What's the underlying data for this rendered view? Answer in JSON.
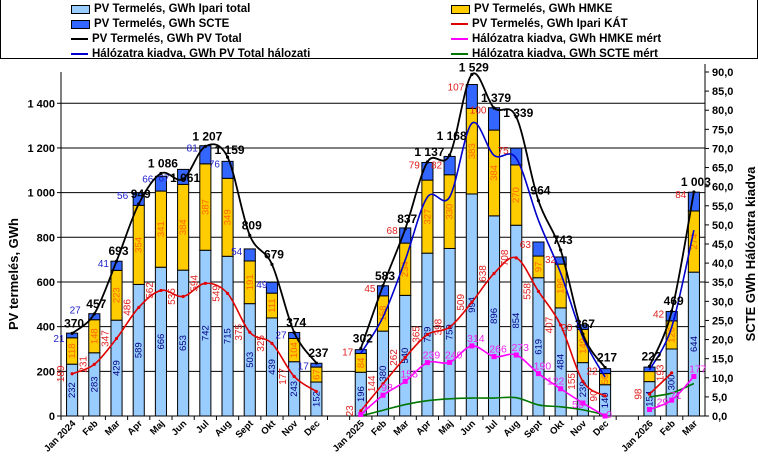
{
  "chart_data": {
    "type": "bar",
    "stacked": true,
    "categories": [
      "Jan 2024",
      "Feb",
      "Mar",
      "Apr",
      "Maj",
      "Jun",
      "Jul",
      "Aug",
      "Sept",
      "Okt",
      "Nov",
      "Dec",
      "",
      "Jan 2025",
      "Feb",
      "Mar",
      "Apr",
      "Maj",
      "Jun",
      "Jul",
      "Aug",
      "Sept",
      "Okt",
      "Nov",
      "Dec",
      "",
      "Jan 2026",
      "Feb",
      "Mar"
    ],
    "ylabel": "PV termelés, GWh",
    "y2label": "SCTE GWh Hálózatra kiadva",
    "ylim": [
      0,
      1540
    ],
    "y2lim": [
      0,
      90
    ],
    "yticks": [
      "0",
      "200",
      "400",
      "600",
      "800",
      "1 000",
      "1 200",
      "1 400"
    ],
    "y2ticks": [
      "0,0",
      "5,0",
      "10,0",
      "15,0",
      "20,0",
      "25,0",
      "30,0",
      "35,0",
      "40,0",
      "45,0",
      "50,0",
      "55,0",
      "60,0",
      "65,0",
      "70,0",
      "75,0",
      "80,0",
      "85,0",
      "90,0"
    ],
    "grid": "horizontal",
    "legend_placement": "top",
    "series": [
      {
        "name": "PV Termelés, GWh Ipari total",
        "kind": "bar",
        "color": "#99ccff",
        "label_color": "#000080",
        "values": [
          232,
          283,
          429,
          589,
          666,
          653,
          742,
          715,
          503,
          439,
          243,
          152,
          null,
          196,
          380,
          540,
          729,
          750,
          994,
          896,
          854,
          619,
          484,
          239,
          140,
          null,
          154,
          300,
          644
        ],
        "labels": [
          "232",
          "283",
          "429",
          "589",
          "666",
          "653",
          "742",
          "715",
          "503",
          "439",
          "243",
          "152",
          null,
          "196",
          "380",
          "540",
          "729",
          "750",
          "994",
          "896",
          "854",
          "619",
          "484",
          "239",
          "140",
          null,
          "154",
          "300",
          "644"
        ]
      },
      {
        "name": "PV Termelés, GWh HMKE",
        "kind": "bar",
        "color": "#ffcc00",
        "label_color": "#ff6600",
        "values": [
          118,
          148,
          223,
          354,
          341,
          384,
          387,
          349,
          191,
          111,
          104,
          67,
          null,
          84,
          158,
          234,
          327,
          330,
          383,
          384,
          270,
          97,
          196,
          149,
          50,
          null,
          45,
          126,
          274
        ],
        "labels": [
          "118",
          "148",
          "223",
          "354",
          "341",
          "384",
          "387",
          "349",
          "191",
          "111",
          "104",
          "67",
          null,
          "84",
          "158",
          "234",
          "327",
          "330",
          "383",
          "384",
          "270",
          "97",
          "196",
          "149",
          "50",
          null,
          null,
          "126",
          "274"
        ]
      },
      {
        "name": "PV Termelés, GWh SCTE",
        "kind": "bar",
        "color": "#3366ff",
        "values": [
          21,
          27,
          41,
          56,
          66,
          67,
          81,
          76,
          54,
          49,
          27,
          17,
          null,
          17,
          45,
          68,
          79,
          82,
          107,
          100,
          75,
          63,
          32,
          20,
          22,
          null,
          20,
          42,
          84
        ],
        "labels": [
          "21",
          "27",
          "41",
          "56",
          "66",
          "67",
          "81",
          "76",
          "54",
          "49",
          "27",
          "17",
          null,
          "17",
          "45",
          "68",
          "79",
          "82",
          "107",
          "100",
          "75",
          "63",
          "32",
          "20",
          "22",
          null,
          null,
          "42",
          "84"
        ]
      },
      {
        "name": "PV Termelés, GWh Ipari KÁT",
        "kind": "line",
        "color": "#e00000",
        "values": [
          189,
          231,
          347,
          486,
          562,
          535,
          594,
          549,
          375,
          325,
          177,
          110,
          null,
          23,
          144,
          262,
          365,
          398,
          509,
          638,
          708,
          558,
          407,
          155,
          90,
          null,
          98,
          193,
          null
        ],
        "labels": [
          "189",
          "231",
          "347",
          "486",
          "562",
          "535",
          "594",
          "549",
          "375",
          "325",
          "177",
          null,
          null,
          "23",
          "144",
          "262",
          "365",
          "398",
          "509",
          "638",
          "708",
          "558",
          "407",
          "155",
          "90",
          null,
          "98",
          "193",
          null
        ]
      },
      {
        "name": "PV Termelés, GWh PV Total",
        "kind": "line",
        "color": "#000000",
        "values": [
          370,
          457,
          693,
          949,
          1086,
          1061,
          1207,
          1159,
          809,
          679,
          374,
          237,
          null,
          302,
          583,
          837,
          1137,
          1168,
          1529,
          1379,
          1339,
          964,
          743,
          367,
          217,
          null,
          222,
          469,
          1003
        ],
        "labels": [
          "370",
          "457",
          "693",
          "949",
          "1 086",
          "1 061",
          "1 207",
          "1 159",
          "809",
          "679",
          "374",
          "237",
          null,
          "302",
          "583",
          "837",
          "1 137",
          "1 168",
          "1 529",
          "1 379",
          "1 339",
          "964",
          "743",
          "367",
          "217",
          null,
          "222",
          "469",
          "1 003"
        ]
      },
      {
        "name": "Hálózatra kiadva, GWh HMKE mért",
        "kind": "line",
        "color": "#ff00ff",
        "values": [
          null,
          null,
          null,
          null,
          null,
          null,
          null,
          null,
          null,
          null,
          null,
          null,
          null,
          7,
          93,
          155,
          239,
          240,
          314,
          266,
          273,
          190,
          122,
          58,
          0,
          null,
          29,
          71,
          177
        ],
        "labels": [
          null,
          null,
          null,
          null,
          null,
          null,
          null,
          null,
          null,
          null,
          null,
          null,
          null,
          "7",
          "93",
          "155",
          "239",
          "240",
          "314",
          "266",
          "273",
          "190",
          "122",
          "58",
          "0",
          null,
          "29",
          "71",
          "177"
        ]
      },
      {
        "name": "Hálózatra kiadva, GWh PV Total hálozati",
        "kind": "line",
        "color": "#0000cc",
        "values": [
          null,
          null,
          null,
          null,
          null,
          null,
          null,
          null,
          null,
          null,
          null,
          null,
          null,
          280,
          443,
          698,
          980,
          980,
          1310,
          1167,
          1154,
          876,
          640,
          353,
          174,
          null,
          206,
          398,
          832
        ]
      },
      {
        "name": "Hálózatra kiadva, GWh SCTE mért",
        "kind": "line",
        "axis": "y2",
        "color": "#007700",
        "values": [
          null,
          null,
          null,
          null,
          null,
          null,
          null,
          null,
          null,
          null,
          null,
          null,
          null,
          0,
          1.5,
          3,
          4,
          4.5,
          4.7,
          4.7,
          4.8,
          2.9,
          2.4,
          1.6,
          0.3,
          null,
          5,
          6,
          8.5
        ]
      }
    ]
  }
}
